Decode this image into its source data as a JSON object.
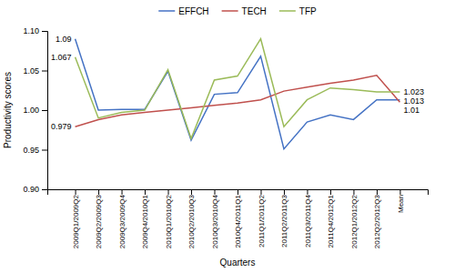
{
  "chart_data": {
    "type": "line",
    "categories": [
      "2009Q1/2009Q2",
      "2009Q2/2009Q3",
      "2009Q3/2009Q4",
      "2009Q4/2010Q1",
      "2010Q1/2010Q2",
      "2010Q2/2010Q3",
      "2010Q3/2010Q4",
      "2010Q4/2011Q1",
      "2011Q1/2011Q2",
      "2011Q2/2011Q3",
      "2011Q3/2011Q4",
      "2011Q4/2012Q1",
      "2012Q1/2012Q2",
      "2012Q2/2012Q3",
      "Mean"
    ],
    "series": [
      {
        "name": "EFFCH",
        "color": "#4472C4",
        "values": [
          1.09,
          1.0,
          1.001,
          1.001,
          1.049,
          0.962,
          1.02,
          1.022,
          1.068,
          0.951,
          0.985,
          0.994,
          0.988,
          1.013,
          1.013
        ]
      },
      {
        "name": "TECH",
        "color": "#C0504D",
        "values": [
          0.979,
          0.988,
          0.994,
          0.997,
          1.0,
          1.003,
          1.006,
          1.009,
          1.013,
          1.024,
          1.029,
          1.034,
          1.038,
          1.044,
          1.01
        ]
      },
      {
        "name": "TFP",
        "color": "#9BBB59",
        "values": [
          1.067,
          0.99,
          0.997,
          1.0,
          1.051,
          0.964,
          1.038,
          1.043,
          1.09,
          0.979,
          1.013,
          1.028,
          1.026,
          1.023,
          1.023
        ]
      }
    ],
    "xlabel": "Quarters",
    "ylabel": "Productivity scores",
    "ylim": [
      0.9,
      1.1
    ],
    "yticks": [
      {
        "value": 0.9,
        "label": "0.90"
      },
      0.95,
      {
        "value": 1.0,
        "label": "1.00"
      },
      1.05,
      {
        "value": 1.1,
        "label": "1.10"
      }
    ],
    "annotations": [
      "1.09",
      "1.067",
      "0.979",
      "1.023",
      "1.013",
      "1.01"
    ],
    "legend": "top"
  }
}
